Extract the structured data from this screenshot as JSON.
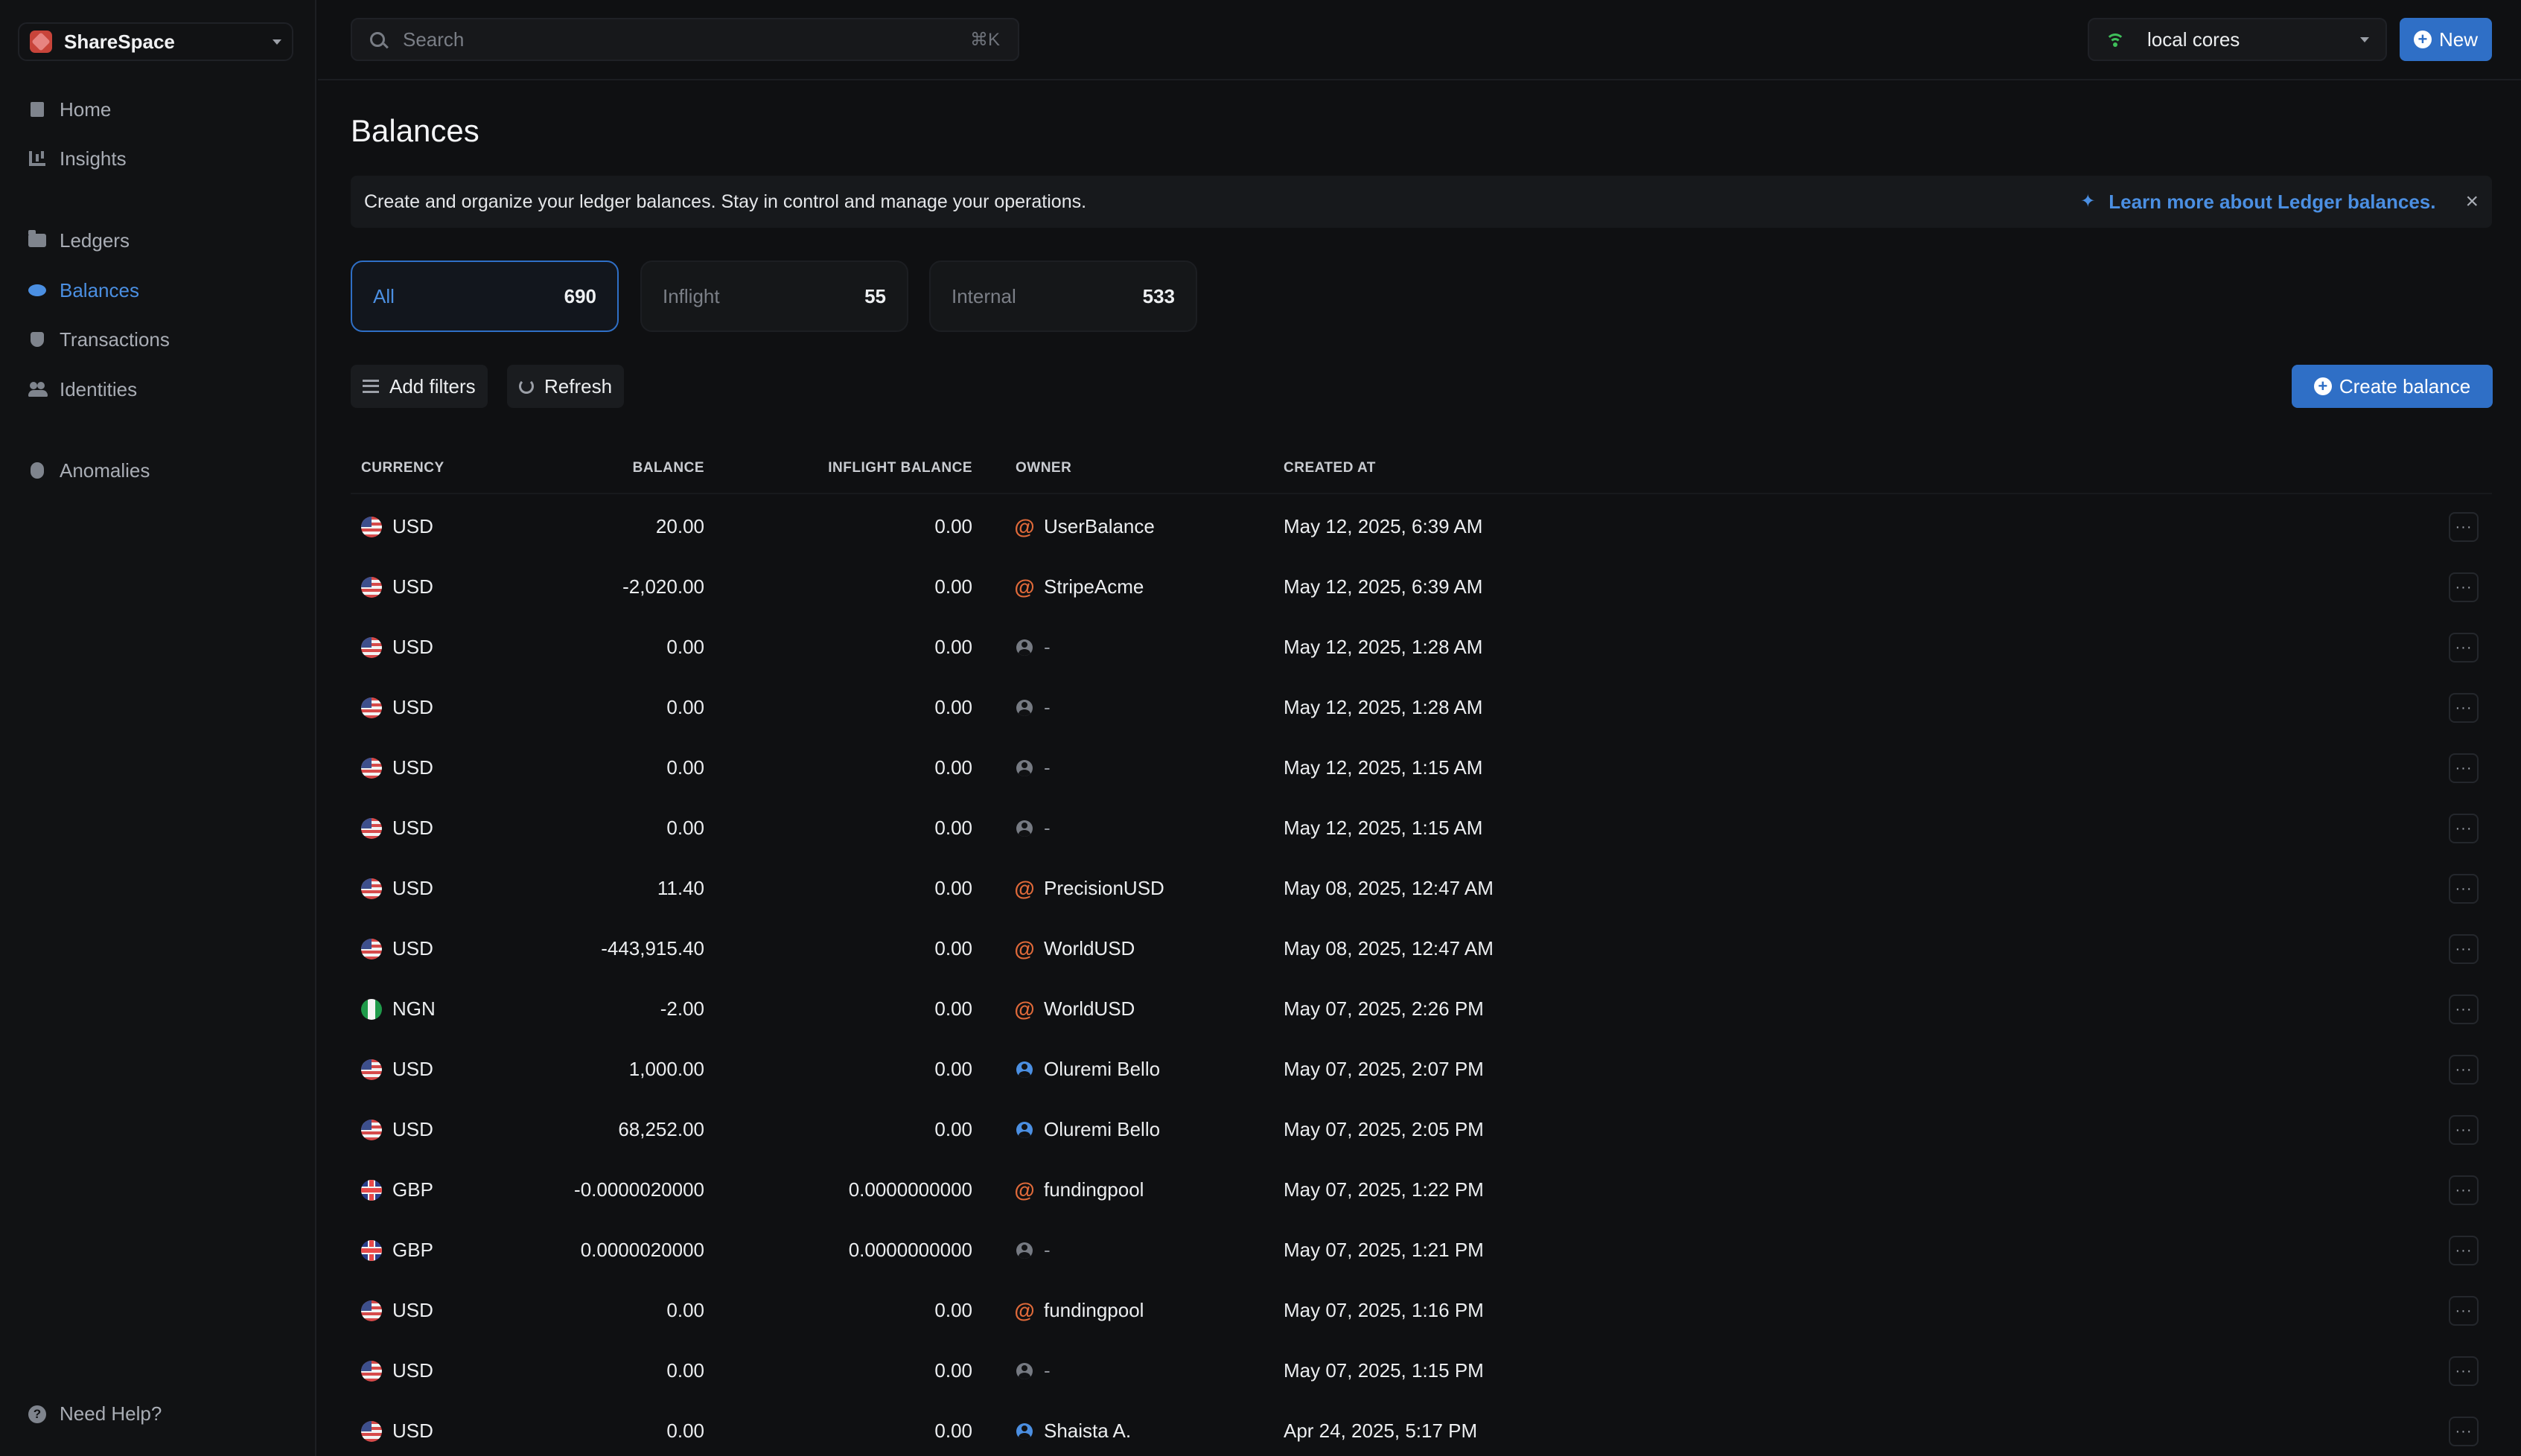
{
  "workspace": {
    "name": "ShareSpace"
  },
  "sidebar": {
    "items": [
      {
        "label": "Home",
        "icon": "building-icon"
      },
      {
        "label": "Insights",
        "icon": "chart-icon"
      },
      {
        "label": "Ledgers",
        "icon": "folder-icon"
      },
      {
        "label": "Balances",
        "icon": "coins-icon",
        "active": true
      },
      {
        "label": "Transactions",
        "icon": "shield-icon"
      },
      {
        "label": "Identities",
        "icon": "people-icon"
      },
      {
        "label": "Anomalies",
        "icon": "bug-icon"
      }
    ],
    "help_label": "Need Help?"
  },
  "search": {
    "placeholder": "Search",
    "shortcut": "⌘K"
  },
  "environment": {
    "label": "local cores"
  },
  "header": {
    "new_label": "New"
  },
  "page": {
    "title": "Balances"
  },
  "banner": {
    "text": "Create and organize your ledger balances. Stay in control and manage your operations.",
    "link": "Learn more about Ledger balances."
  },
  "tabs": [
    {
      "label": "All",
      "count": "690",
      "active": true
    },
    {
      "label": "Inflight",
      "count": "55"
    },
    {
      "label": "Internal",
      "count": "533"
    }
  ],
  "toolbar": {
    "add_filters": "Add filters",
    "refresh": "Refresh",
    "create_balance": "Create balance"
  },
  "table": {
    "columns": {
      "currency": "CURRENCY",
      "balance": "BALANCE",
      "inflight": "INFLIGHT BALANCE",
      "owner": "OWNER",
      "created": "CREATED AT"
    },
    "rows": [
      {
        "currency": "USD",
        "flag": "us",
        "balance": "20.00",
        "inflight": "0.00",
        "owner": "UserBalance",
        "owner_type": "at",
        "created": "May 12, 2025, 6:39 AM"
      },
      {
        "currency": "USD",
        "flag": "us",
        "balance": "-2,020.00",
        "inflight": "0.00",
        "owner": "StripeAcme",
        "owner_type": "at",
        "created": "May 12, 2025, 6:39 AM"
      },
      {
        "currency": "USD",
        "flag": "us",
        "balance": "0.00",
        "inflight": "0.00",
        "owner": "-",
        "owner_type": "none",
        "created": "May 12, 2025, 1:28 AM"
      },
      {
        "currency": "USD",
        "flag": "us",
        "balance": "0.00",
        "inflight": "0.00",
        "owner": "-",
        "owner_type": "none",
        "created": "May 12, 2025, 1:28 AM"
      },
      {
        "currency": "USD",
        "flag": "us",
        "balance": "0.00",
        "inflight": "0.00",
        "owner": "-",
        "owner_type": "none",
        "created": "May 12, 2025, 1:15 AM"
      },
      {
        "currency": "USD",
        "flag": "us",
        "balance": "0.00",
        "inflight": "0.00",
        "owner": "-",
        "owner_type": "none",
        "created": "May 12, 2025, 1:15 AM"
      },
      {
        "currency": "USD",
        "flag": "us",
        "balance": "11.40",
        "inflight": "0.00",
        "owner": "PrecisionUSD",
        "owner_type": "at",
        "created": "May 08, 2025, 12:47 AM"
      },
      {
        "currency": "USD",
        "flag": "us",
        "balance": "-443,915.40",
        "inflight": "0.00",
        "owner": "WorldUSD",
        "owner_type": "at",
        "created": "May 08, 2025, 12:47 AM"
      },
      {
        "currency": "NGN",
        "flag": "ng",
        "balance": "-2.00",
        "inflight": "0.00",
        "owner": "WorldUSD",
        "owner_type": "at",
        "created": "May 07, 2025, 2:26 PM"
      },
      {
        "currency": "USD",
        "flag": "us",
        "balance": "1,000.00",
        "inflight": "0.00",
        "owner": "Oluremi Bello",
        "owner_type": "user",
        "created": "May 07, 2025, 2:07 PM"
      },
      {
        "currency": "USD",
        "flag": "us",
        "balance": "68,252.00",
        "inflight": "0.00",
        "owner": "Oluremi Bello",
        "owner_type": "user",
        "created": "May 07, 2025, 2:05 PM"
      },
      {
        "currency": "GBP",
        "flag": "gb",
        "balance": "-0.0000020000",
        "inflight": "0.0000000000",
        "owner": "fundingpool",
        "owner_type": "at",
        "created": "May 07, 2025, 1:22 PM"
      },
      {
        "currency": "GBP",
        "flag": "gb",
        "balance": "0.0000020000",
        "inflight": "0.0000000000",
        "owner": "-",
        "owner_type": "none",
        "created": "May 07, 2025, 1:21 PM"
      },
      {
        "currency": "USD",
        "flag": "us",
        "balance": "0.00",
        "inflight": "0.00",
        "owner": "fundingpool",
        "owner_type": "at",
        "created": "May 07, 2025, 1:16 PM"
      },
      {
        "currency": "USD",
        "flag": "us",
        "balance": "0.00",
        "inflight": "0.00",
        "owner": "-",
        "owner_type": "none",
        "created": "May 07, 2025, 1:15 PM"
      },
      {
        "currency": "USD",
        "flag": "us",
        "balance": "0.00",
        "inflight": "0.00",
        "owner": "Shaista A.",
        "owner_type": "user",
        "created": "Apr 24, 2025, 5:17 PM"
      }
    ],
    "more_label": "···"
  },
  "colors": {
    "accent": "#2f6fc6",
    "link": "#4b8fe2",
    "owner_at": "#e06a3a",
    "online": "#3fbf5a"
  }
}
